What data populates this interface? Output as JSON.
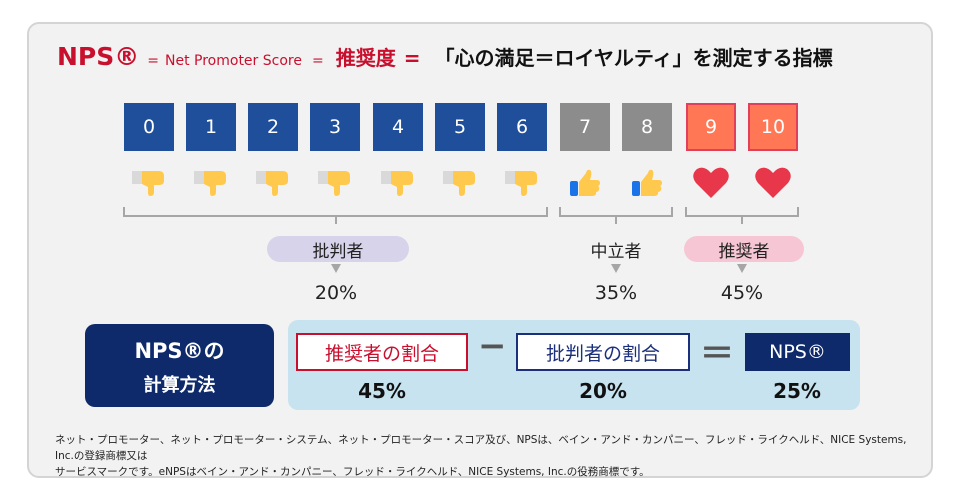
{
  "title": {
    "nps": "NPS®",
    "eq1": "=",
    "full_name": "Net Promoter Score",
    "eq2": "=",
    "jp_term": "推奨度",
    "eq3": "=",
    "description": "「心の満足＝ロイヤルティ」を測定する指標"
  },
  "scores": [
    "0",
    "1",
    "2",
    "3",
    "4",
    "5",
    "6",
    "7",
    "8",
    "9",
    "10"
  ],
  "icons": [
    "thumbs-down-icon",
    "thumbs-down-icon",
    "thumbs-down-icon",
    "thumbs-down-icon",
    "thumbs-down-icon",
    "thumbs-down-icon",
    "thumbs-down-icon",
    "thumbs-up-icon",
    "thumbs-up-icon",
    "heart-icon",
    "heart-icon"
  ],
  "colors": {
    "detractor": "#1f4e9a",
    "passive": "#8c8c8c",
    "promoter": "#ff7755",
    "accent_red": "#c8102e",
    "navy": "#0e2a6b",
    "panel": "#c6e3ef"
  },
  "groups": {
    "detractor": {
      "label": "批判者",
      "percent": "20%"
    },
    "passive": {
      "label": "中立者",
      "percent": "35%"
    },
    "promoter": {
      "label": "推奨者",
      "percent": "45%"
    }
  },
  "calculation": {
    "title_line1": "NPS®の",
    "title_line2": "計算方法",
    "term1": "推奨者の割合",
    "minus": "−",
    "term2": "批判者の割合",
    "equals": "＝",
    "result_label": "NPS®",
    "value1": "45%",
    "value2": "20%",
    "result_value": "25%"
  },
  "footnote": {
    "line1": "ネット・プロモーター、ネット・プロモーター・システム、ネット・プロモーター・スコア及び、NPSは、ベイン・アンド・カンパニー、フレッド・ライクヘルド、NICE Systems, Inc.の登録商標又は",
    "line2": "サービスマークです。eNPSはベイン・アンド・カンパニー、フレッド・ライクヘルド、NICE Systems, Inc.の役務商標です。"
  }
}
